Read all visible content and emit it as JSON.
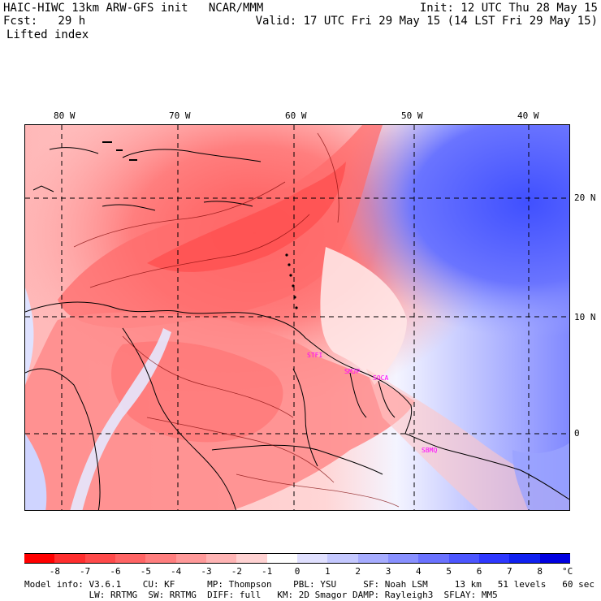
{
  "header": {
    "model_line": "HAIC-HIWC 13km ARW-GFS init   NCAR/MMM",
    "fcst_line": "Fcst:   29 h",
    "field_name": "Lifted index",
    "init_line": "Init: 12 UTC Thu 28 May 15",
    "valid_line": "Valid: 17 UTC Fri 29 May 15 (14 LST Fri 29 May 15)"
  },
  "map": {
    "lon_labels": [
      "80 W",
      "70 W",
      "60 W",
      "50 W",
      "40 W"
    ],
    "lat_labels": [
      "20 N",
      "10 N",
      "0"
    ],
    "sites": [
      "STFI",
      "SMJP",
      "SOCA",
      "SBMQ"
    ]
  },
  "colorbar": {
    "unit": "°C",
    "labels": [
      "-8",
      "-7",
      "-6",
      "-5",
      "-4",
      "-3",
      "-2",
      "-1",
      "0",
      "1",
      "2",
      "3",
      "4",
      "5",
      "6",
      "7",
      "8"
    ],
    "colors": [
      "#ff0000",
      "#ff2e2e",
      "#ff4a4a",
      "#ff6464",
      "#ff7e7e",
      "#ff9999",
      "#ffb4b4",
      "#ffd2d2",
      "#ffffff",
      "#e0e0ff",
      "#c4c8ff",
      "#a6acff",
      "#8890ff",
      "#6a72ff",
      "#4c56ff",
      "#2e38ff",
      "#1020f0",
      "#0000e0"
    ]
  },
  "footer": {
    "line1": "Model info: V3.6.1    CU: KF      MP: Thompson    PBL: YSU     SF: Noah LSM     13 km   51 levels   60 sec",
    "line2": "            LW: RRTMG  SW: RRTMG  DIFF: full   KM: 2D Smagor DAMP: Rayleigh3  SFLAY: MM5"
  }
}
